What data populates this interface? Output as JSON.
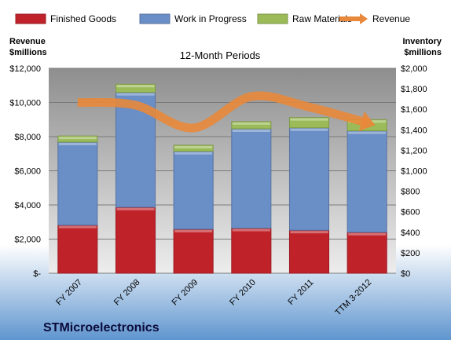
{
  "chart_data": {
    "type": "bar",
    "subtitle": "12-Month Periods",
    "company": "STMicroelectronics",
    "categories": [
      "FY 2007",
      "FY 2008",
      "FY 2009",
      "FY 2010",
      "FY 2011",
      "TTM 3-2012"
    ],
    "left_axis": {
      "label_line1": "Revenue",
      "label_line2": "$millions",
      "ylim": [
        0,
        12000
      ],
      "ticks": [
        "$-",
        "$2,000",
        "$4,000",
        "$6,000",
        "$8,000",
        "$10,000",
        "$12,000"
      ]
    },
    "right_axis": {
      "label_line1": "Inventory",
      "label_line2": "$millions",
      "ylim": [
        0,
        2000
      ],
      "ticks": [
        "$0",
        "$200",
        "$400",
        "$600",
        "$800",
        "$1,000",
        "$1,200",
        "$1,400",
        "$1,600",
        "$1,800",
        "$2,000"
      ]
    },
    "series": [
      {
        "name": "Finished Goods",
        "axis": "right",
        "color": "#c0222a",
        "values": [
          470,
          645,
          430,
          440,
          420,
          400
        ]
      },
      {
        "name": "Work in Progress",
        "axis": "right",
        "color": "#6a8ec6",
        "values": [
          810,
          1120,
          760,
          970,
          1000,
          990
        ]
      },
      {
        "name": "Raw Materials",
        "axis": "right",
        "color": "#9bbb59",
        "values": [
          60,
          80,
          60,
          70,
          100,
          110
        ]
      },
      {
        "name": "Revenue",
        "axis": "left",
        "type": "line",
        "color": "#e8883a",
        "values": [
          10000,
          9840,
          8510,
          10350,
          9730,
          8810
        ]
      }
    ],
    "grid": true,
    "legend_position": "top"
  }
}
